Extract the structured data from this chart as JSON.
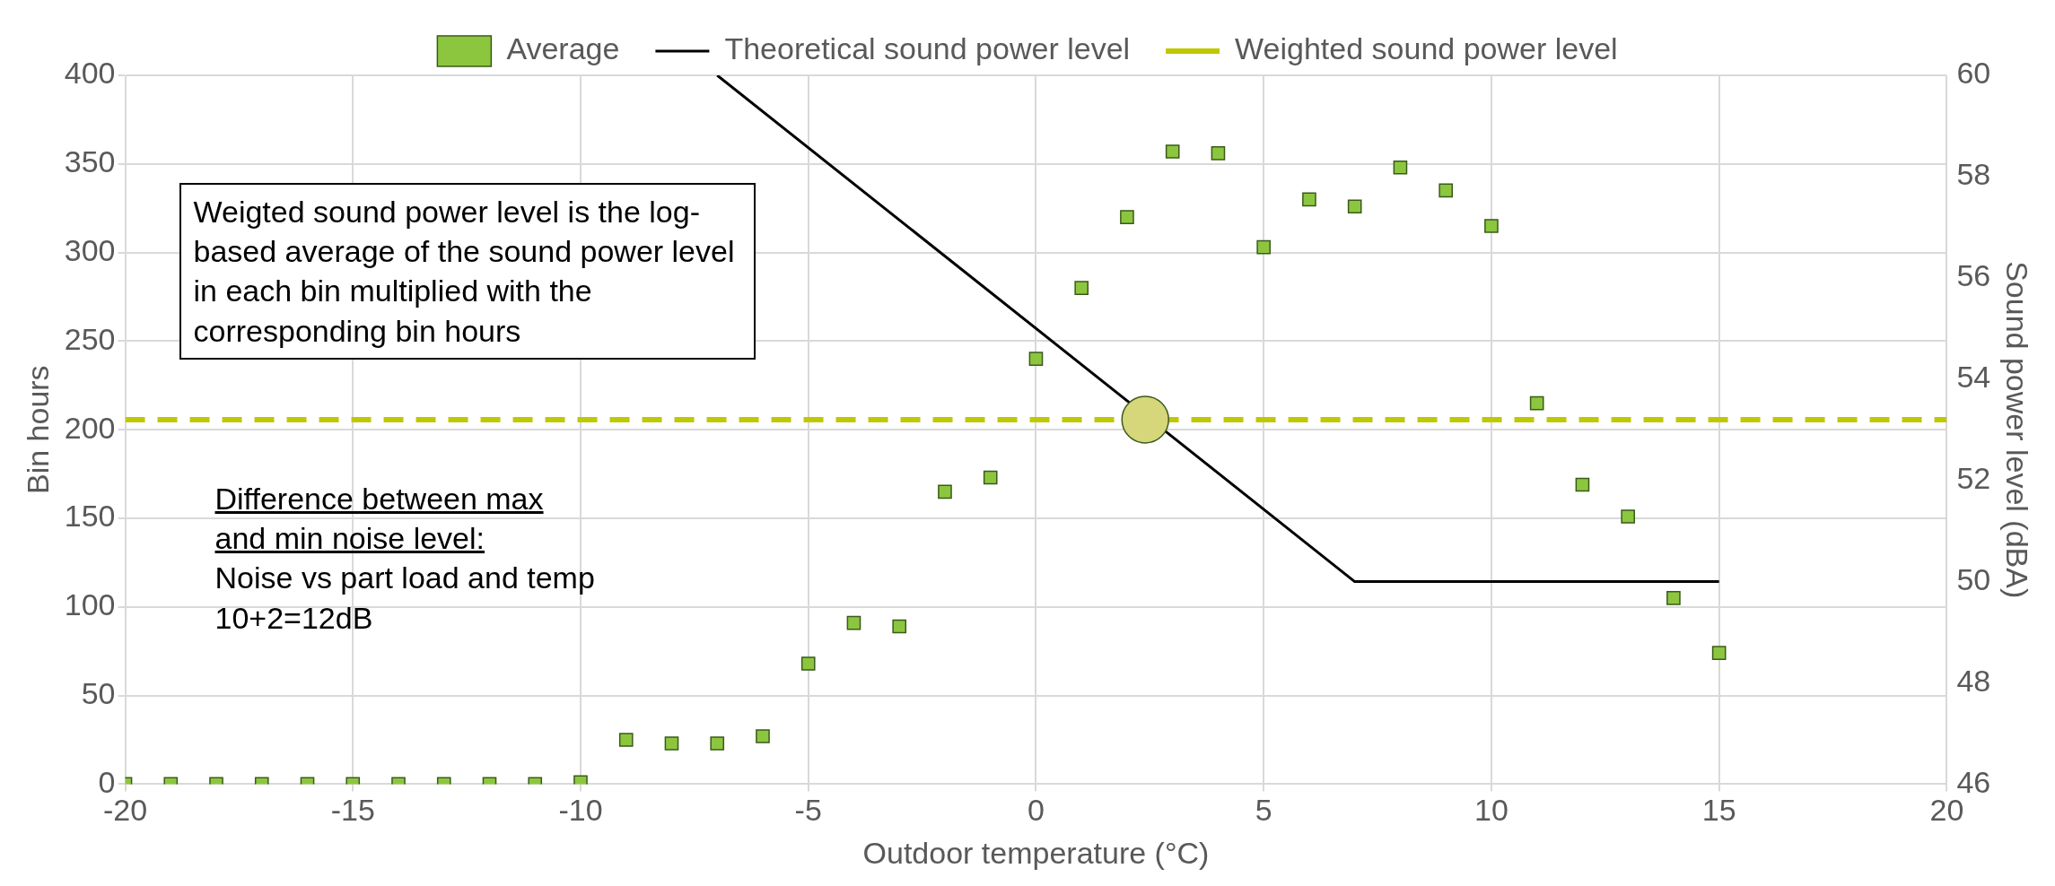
{
  "chart_data": {
    "type": "scatter",
    "xlabel": "Outdoor temperature (°C)",
    "ylabel": "Bin hours",
    "y2label": "Sound power level (dBA)",
    "xlim": [
      -20,
      20
    ],
    "xticks": [
      -20,
      -15,
      -10,
      -5,
      0,
      5,
      10,
      15,
      20
    ],
    "ylim": [
      0,
      400
    ],
    "yticks": [
      0,
      50,
      100,
      150,
      200,
      250,
      300,
      350,
      400
    ],
    "y2lim": [
      46,
      60
    ],
    "y2ticks": [
      46,
      48,
      50,
      52,
      54,
      56,
      58,
      60
    ],
    "grid": true,
    "legend": "top",
    "series": [
      {
        "name": "Average",
        "type": "scatter",
        "marker": "square",
        "color": "#8cc63f",
        "x": [
          -20,
          -19,
          -18,
          -17,
          -16,
          -15,
          -14,
          -13,
          -12,
          -11,
          -10,
          -9,
          -8,
          -7,
          -6,
          -5,
          -4,
          -3,
          -2,
          -1,
          0,
          1,
          2,
          3,
          4,
          5,
          6,
          7,
          8,
          9,
          10,
          11,
          12,
          13,
          14,
          15
        ],
        "values": [
          0,
          0,
          0,
          0,
          0,
          0,
          0,
          0,
          0,
          0,
          1,
          25,
          23,
          23,
          27,
          68,
          91,
          89,
          165,
          173,
          240,
          280,
          320,
          357,
          356,
          303,
          330,
          326,
          348,
          335,
          315,
          215,
          169,
          151,
          105,
          74
        ]
      },
      {
        "name": "Theoretical sound power level",
        "type": "line",
        "marker": "none",
        "axis": "y2",
        "color": "#000000",
        "line_style": "solid",
        "x": [
          -7,
          7,
          15
        ],
        "values": [
          60,
          50,
          50
        ]
      },
      {
        "name": "Weighted sound power level",
        "type": "line",
        "marker": "none",
        "axis": "y2",
        "color": "#bfc800",
        "line_style": "dashed",
        "x": [
          -20,
          20
        ],
        "values": [
          53.2,
          53.2
        ]
      },
      {
        "type": "scatter",
        "marker": "circle",
        "axis": "y2",
        "color": "#d6d67a",
        "x": [
          2.4
        ],
        "values": [
          53.2
        ]
      }
    ],
    "annotations": [
      "Weigted sound power level is the log-based average of the sound power level in each bin multiplied with the corresponding bin hours",
      "Difference between max and min noise level:\nNoise vs part load and temp\n10+2=12dB"
    ]
  }
}
